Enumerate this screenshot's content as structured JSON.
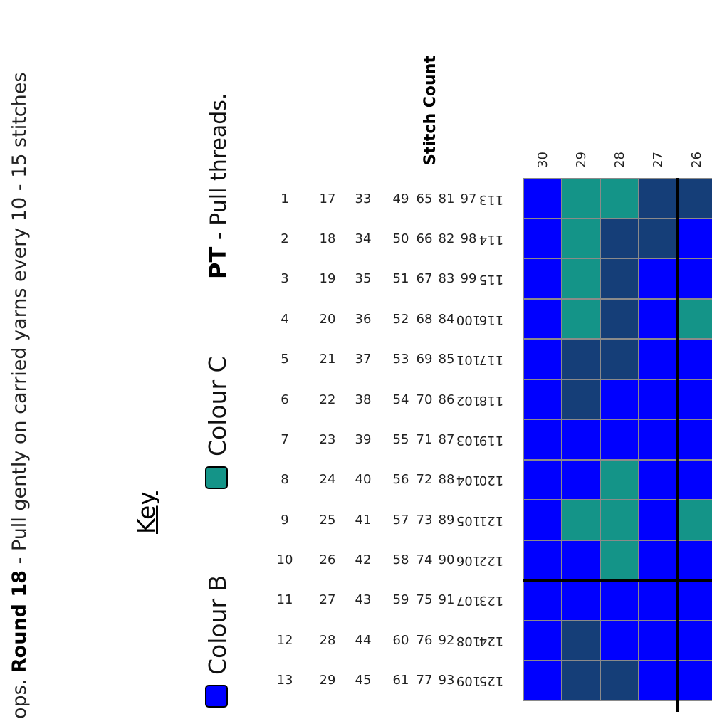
{
  "instructions": {
    "prefix": "ops. ",
    "round_label": "Round 18",
    "text": " - Pull gently on carried yarns every 10 - 15 stitches"
  },
  "key": {
    "title": "Key",
    "items": [
      {
        "label": "Colour B",
        "color": "#0000ff"
      },
      {
        "label": "Colour C",
        "color": "#149488"
      }
    ]
  },
  "pt": {
    "abbr": "PT",
    "text": " - Pull threads."
  },
  "stitch_count": {
    "title": "Stitch Count",
    "rows": [
      [
        1,
        2,
        3,
        4,
        5,
        6,
        7,
        8,
        9,
        10,
        11,
        12,
        13
      ],
      [
        17,
        18,
        19,
        20,
        21,
        22,
        23,
        24,
        25,
        26,
        27,
        28,
        29
      ],
      [
        33,
        34,
        35,
        36,
        37,
        38,
        39,
        40,
        41,
        42,
        43,
        44,
        45
      ],
      [
        49,
        50,
        51,
        52,
        53,
        54,
        55,
        56,
        57,
        58,
        59,
        60,
        61
      ],
      [
        65,
        66,
        67,
        68,
        69,
        70,
        71,
        72,
        73,
        74,
        75,
        76,
        77
      ],
      [
        81,
        82,
        83,
        84,
        85,
        86,
        87,
        88,
        89,
        90,
        91,
        92,
        93
      ],
      [
        97,
        98,
        99,
        100,
        101,
        102,
        103,
        104,
        105,
        106,
        107,
        108,
        109
      ],
      [
        113,
        114,
        115,
        116,
        117,
        118,
        119,
        120,
        121,
        122,
        123,
        124,
        125
      ]
    ]
  },
  "chart": {
    "round_numbers": [
      "30",
      "29",
      "28",
      "27",
      "26"
    ],
    "colors": {
      "B": "#0000ff",
      "C": "#149488",
      "D": "#153e78"
    },
    "rows": [
      [
        "B",
        "B",
        "B",
        "B",
        "B",
        "B",
        "B",
        "B",
        "B",
        "B",
        "B",
        "B",
        "B"
      ],
      [
        "C",
        "C",
        "C",
        "C",
        "D",
        "D",
        "B",
        "B",
        "C",
        "B",
        "B",
        "D",
        "D"
      ],
      [
        "C",
        "D",
        "D",
        "D",
        "D",
        "B",
        "B",
        "C",
        "C",
        "C",
        "B",
        "B",
        "D"
      ],
      [
        "D",
        "D",
        "B",
        "B",
        "B",
        "B",
        "B",
        "B",
        "B",
        "B",
        "B",
        "B",
        "B"
      ],
      [
        "D",
        "B",
        "B",
        "C",
        "B",
        "B",
        "B",
        "B",
        "C",
        "B",
        "B",
        "B",
        "B"
      ]
    ]
  }
}
